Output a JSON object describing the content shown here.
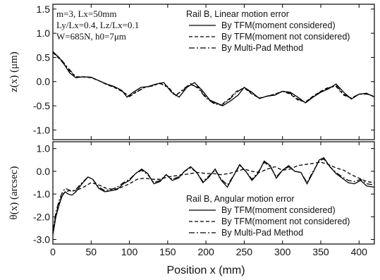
{
  "chart_data": [
    {
      "type": "line",
      "ylabel": "z(x)  (μm)",
      "ylim": [
        -1.2,
        1.6
      ],
      "xlim": [
        0,
        420
      ],
      "yticks": [
        "1.5",
        "1.0",
        "0.5",
        "0.0",
        "-0.5",
        "-1.0"
      ],
      "ytick_values": [
        1.5,
        1.0,
        0.5,
        0.0,
        -0.5,
        -1.0
      ],
      "params": [
        "m=3, Lx=50mm",
        "Ly/Lx=0.4, Lz/Lx=0.1",
        "W=685N, h0=7μm"
      ],
      "legend_title": "Rail B, Linear motion error",
      "legend_position": "top-right",
      "series": [
        {
          "name": "By TFM(moment considered)",
          "style": "solid",
          "x": [
            0,
            8,
            15,
            22,
            30,
            40,
            50,
            60,
            70,
            80,
            90,
            97,
            105,
            115,
            125,
            135,
            145,
            155,
            165,
            175,
            185,
            195,
            205,
            215,
            222,
            232,
            242,
            250,
            260,
            270,
            280,
            290,
            300,
            310,
            320,
            330,
            340,
            350,
            360,
            370,
            380,
            390,
            400,
            410,
            420
          ],
          "y": [
            0.62,
            0.5,
            0.35,
            0.18,
            0.08,
            0.1,
            0.09,
            0.02,
            -0.05,
            -0.1,
            -0.18,
            -0.32,
            -0.22,
            -0.12,
            -0.1,
            -0.05,
            -0.02,
            -0.22,
            -0.32,
            -0.12,
            -0.02,
            -0.18,
            -0.38,
            -0.45,
            -0.5,
            -0.4,
            -0.28,
            -0.12,
            -0.22,
            -0.35,
            -0.3,
            -0.28,
            -0.2,
            -0.22,
            -0.32,
            -0.44,
            -0.32,
            -0.22,
            -0.15,
            -0.05,
            -0.22,
            -0.36,
            -0.26,
            -0.24,
            -0.32
          ]
        },
        {
          "name": "By TFM(moment not considered)",
          "style": "dashed",
          "x": [
            0,
            10,
            20,
            30,
            40,
            50,
            60,
            70,
            80,
            90,
            100,
            110,
            120,
            130,
            140,
            150,
            160,
            170,
            180,
            190,
            200,
            210,
            220,
            230,
            240,
            250,
            260,
            270,
            280,
            290,
            300,
            310,
            320,
            330,
            340,
            350,
            360,
            370,
            380,
            390,
            400,
            410,
            420
          ],
          "y": [
            0.6,
            0.45,
            0.25,
            0.1,
            0.1,
            0.08,
            0.02,
            -0.06,
            -0.12,
            -0.2,
            -0.3,
            -0.2,
            -0.12,
            -0.08,
            -0.04,
            -0.1,
            -0.28,
            -0.18,
            -0.06,
            -0.12,
            -0.32,
            -0.44,
            -0.48,
            -0.36,
            -0.2,
            -0.13,
            -0.26,
            -0.34,
            -0.3,
            -0.26,
            -0.2,
            -0.26,
            -0.38,
            -0.42,
            -0.3,
            -0.2,
            -0.12,
            -0.1,
            -0.28,
            -0.34,
            -0.26,
            -0.26,
            -0.3
          ]
        },
        {
          "name": "By Multi-Pad Method",
          "style": "dashdot",
          "x": [
            0,
            10,
            20,
            30,
            40,
            50,
            60,
            70,
            80,
            90,
            100,
            110,
            120,
            130,
            140,
            150,
            160,
            170,
            180,
            190,
            200,
            210,
            220,
            230,
            240,
            250,
            260,
            270,
            280,
            290,
            300,
            310,
            320,
            330,
            340,
            350,
            360,
            370,
            380,
            390,
            400,
            410,
            420
          ],
          "y": [
            0.61,
            0.47,
            0.28,
            0.1,
            0.09,
            0.09,
            0.02,
            -0.05,
            -0.11,
            -0.19,
            -0.31,
            -0.21,
            -0.12,
            -0.09,
            -0.03,
            -0.12,
            -0.3,
            -0.16,
            -0.04,
            -0.14,
            -0.34,
            -0.45,
            -0.49,
            -0.38,
            -0.22,
            -0.12,
            -0.24,
            -0.35,
            -0.3,
            -0.27,
            -0.2,
            -0.24,
            -0.36,
            -0.43,
            -0.31,
            -0.21,
            -0.13,
            -0.08,
            -0.26,
            -0.35,
            -0.26,
            -0.25,
            -0.31
          ]
        }
      ]
    },
    {
      "type": "line",
      "ylabel": "θ(x)  (arcsec)",
      "xlabel": "Position  x (mm)",
      "ylim": [
        -3.2,
        1.3
      ],
      "xlim": [
        0,
        420
      ],
      "yticks": [
        "1.0",
        "0.0",
        "-1.0",
        "-2.0",
        "-3.0"
      ],
      "ytick_values": [
        1.0,
        0.0,
        -1.0,
        -2.0,
        -3.0
      ],
      "xticks": [
        "0",
        "50",
        "100",
        "150",
        "200",
        "250",
        "300",
        "350",
        "400"
      ],
      "xtick_values": [
        0,
        50,
        100,
        150,
        200,
        250,
        300,
        350,
        400
      ],
      "legend_title": "Rail B, Angular motion error",
      "legend_position": "bottom-right",
      "series": [
        {
          "name": "By TFM(moment considered)",
          "style": "solid",
          "x": [
            0,
            4,
            8,
            12,
            16,
            20,
            25,
            30,
            38,
            46,
            52,
            60,
            68,
            76,
            84,
            92,
            100,
            108,
            116,
            124,
            132,
            140,
            148,
            156,
            164,
            172,
            180,
            188,
            196,
            204,
            212,
            220,
            228,
            236,
            244,
            252,
            260,
            268,
            276,
            284,
            292,
            300,
            308,
            316,
            324,
            332,
            340,
            348,
            354,
            362,
            370,
            378,
            386,
            394,
            402,
            410,
            420
          ],
          "y": [
            -2.8,
            -2.0,
            -1.5,
            -1.1,
            -0.9,
            -1.0,
            -1.05,
            -0.9,
            -0.55,
            -0.25,
            -0.35,
            -0.75,
            -0.9,
            -0.85,
            -0.8,
            -0.55,
            -0.4,
            -0.1,
            0.1,
            -0.1,
            -0.55,
            -0.45,
            -0.15,
            -0.4,
            -0.3,
            0.0,
            0.2,
            -0.05,
            -0.5,
            -0.25,
            0.1,
            -0.4,
            -0.7,
            -0.2,
            0.3,
            0.0,
            -0.4,
            -0.1,
            0.45,
            0.25,
            -0.3,
            0.05,
            0.25,
            0.0,
            -0.05,
            -0.55,
            -0.05,
            0.5,
            0.6,
            0.2,
            -0.1,
            -0.3,
            -0.5,
            -0.55,
            -0.4,
            -0.65,
            -0.7
          ]
        },
        {
          "name": "By TFM(moment not considered)",
          "style": "dashed",
          "x": [
            0,
            4,
            8,
            12,
            16,
            22,
            30,
            40,
            50,
            60,
            70,
            80,
            90,
            100,
            110,
            120,
            130,
            140,
            150,
            160,
            170,
            180,
            190,
            200,
            210,
            220,
            230,
            240,
            250,
            260,
            270,
            280,
            290,
            300,
            310,
            320,
            330,
            340,
            350,
            360,
            370,
            380,
            390,
            400,
            410,
            420
          ],
          "y": [
            -2.7,
            -1.9,
            -1.4,
            -1.05,
            -0.9,
            -0.85,
            -0.85,
            -0.7,
            -0.5,
            -0.6,
            -0.75,
            -0.8,
            -0.7,
            -0.55,
            -0.35,
            -0.3,
            -0.35,
            -0.35,
            -0.25,
            -0.2,
            -0.15,
            -0.1,
            -0.05,
            -0.1,
            -0.1,
            -0.15,
            -0.1,
            0.0,
            0.1,
            0.0,
            -0.05,
            0.1,
            0.2,
            0.05,
            0.1,
            0.25,
            0.3,
            0.35,
            0.4,
            0.3,
            0.15,
            0.05,
            -0.15,
            -0.3,
            -0.45,
            -0.5
          ]
        },
        {
          "name": "By Multi-Pad Method",
          "style": "dashdot",
          "x": [
            0,
            4,
            8,
            12,
            16,
            20,
            25,
            30,
            38,
            46,
            52,
            60,
            68,
            76,
            84,
            92,
            100,
            108,
            116,
            124,
            132,
            140,
            148,
            156,
            164,
            172,
            180,
            188,
            196,
            204,
            212,
            220,
            228,
            236,
            244,
            252,
            260,
            268,
            276,
            284,
            292,
            300,
            308,
            316,
            324,
            332,
            340,
            348,
            354,
            362,
            370,
            378,
            386,
            394,
            402,
            410,
            420
          ],
          "y": [
            -2.6,
            -1.8,
            -1.3,
            -0.95,
            -0.75,
            -0.8,
            -0.9,
            -0.8,
            -0.5,
            -0.25,
            -0.35,
            -0.7,
            -0.85,
            -0.8,
            -0.7,
            -0.5,
            -0.35,
            -0.1,
            0.05,
            -0.15,
            -0.5,
            -0.4,
            -0.15,
            -0.35,
            -0.25,
            0.0,
            0.15,
            -0.05,
            -0.45,
            -0.2,
            0.05,
            -0.35,
            -0.6,
            -0.2,
            0.25,
            0.0,
            -0.35,
            -0.05,
            0.4,
            0.2,
            -0.25,
            0.05,
            0.2,
            0.0,
            -0.05,
            -0.5,
            0.0,
            0.45,
            0.55,
            0.2,
            -0.05,
            -0.25,
            -0.4,
            -0.45,
            -0.35,
            -0.55,
            -0.6
          ]
        }
      ]
    }
  ]
}
